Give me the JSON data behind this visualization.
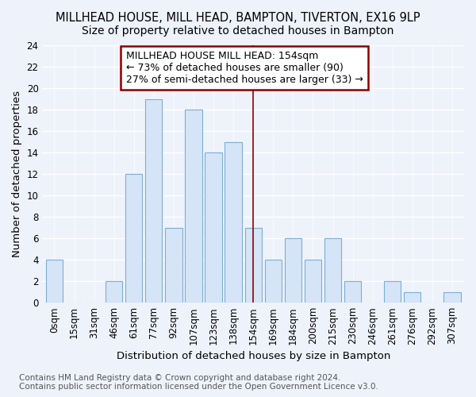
{
  "title": "MILLHEAD HOUSE, MILL HEAD, BAMPTON, TIVERTON, EX16 9LP",
  "subtitle": "Size of property relative to detached houses in Bampton",
  "xlabel": "Distribution of detached houses by size in Bampton",
  "ylabel": "Number of detached properties",
  "categories": [
    "0sqm",
    "15sqm",
    "31sqm",
    "46sqm",
    "61sqm",
    "77sqm",
    "92sqm",
    "107sqm",
    "123sqm",
    "138sqm",
    "154sqm",
    "169sqm",
    "184sqm",
    "200sqm",
    "215sqm",
    "230sqm",
    "246sqm",
    "261sqm",
    "276sqm",
    "292sqm",
    "307sqm"
  ],
  "values": [
    4,
    0,
    0,
    2,
    12,
    19,
    7,
    18,
    14,
    15,
    7,
    4,
    6,
    4,
    6,
    2,
    0,
    2,
    1,
    0,
    1
  ],
  "highlight_index": 10,
  "bar_color": "#d6e4f7",
  "bar_edge_color": "#7aaed6",
  "highlight_line_color": "#8b0000",
  "annotation_text": "MILLHEAD HOUSE MILL HEAD: 154sqm\n← 73% of detached houses are smaller (90)\n27% of semi-detached houses are larger (33) →",
  "annotation_box_edge_color": "#8b0000",
  "ylim": [
    0,
    24
  ],
  "yticks": [
    0,
    2,
    4,
    6,
    8,
    10,
    12,
    14,
    16,
    18,
    20,
    22,
    24
  ],
  "footer_text": "Contains HM Land Registry data © Crown copyright and database right 2024.\nContains public sector information licensed under the Open Government Licence v3.0.",
  "title_fontsize": 10.5,
  "subtitle_fontsize": 10,
  "axis_label_fontsize": 9.5,
  "tick_fontsize": 8.5,
  "footer_fontsize": 7.5,
  "annotation_fontsize": 9,
  "background_color": "#eef2fb"
}
